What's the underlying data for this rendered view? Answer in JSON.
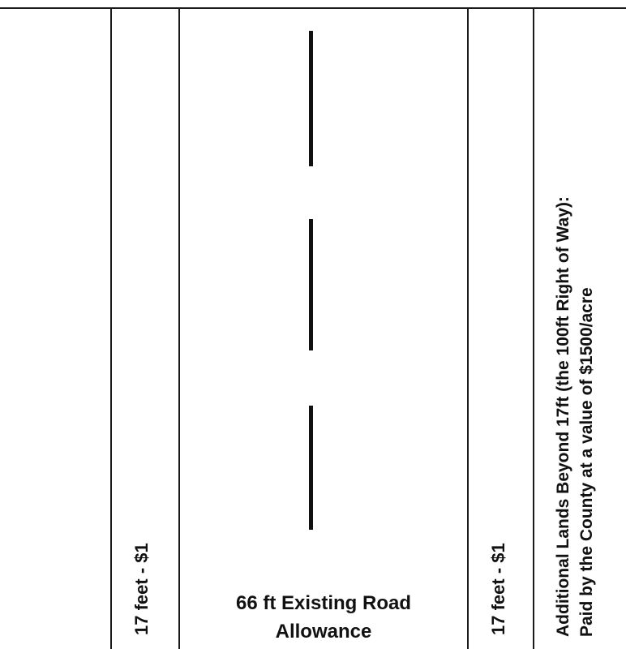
{
  "left_strip": {
    "label": "17 feet - $1"
  },
  "road_allowance": {
    "label_line1": "66 ft Existing Road",
    "label_line2": "Allowance"
  },
  "right_strip": {
    "label": "17 feet - $1"
  },
  "additional_lands": {
    "line1": "Additional Lands Beyond 17ft (the 100ft Right of Way):",
    "line2": "Paid by the County at a value of  $1500/acre"
  }
}
